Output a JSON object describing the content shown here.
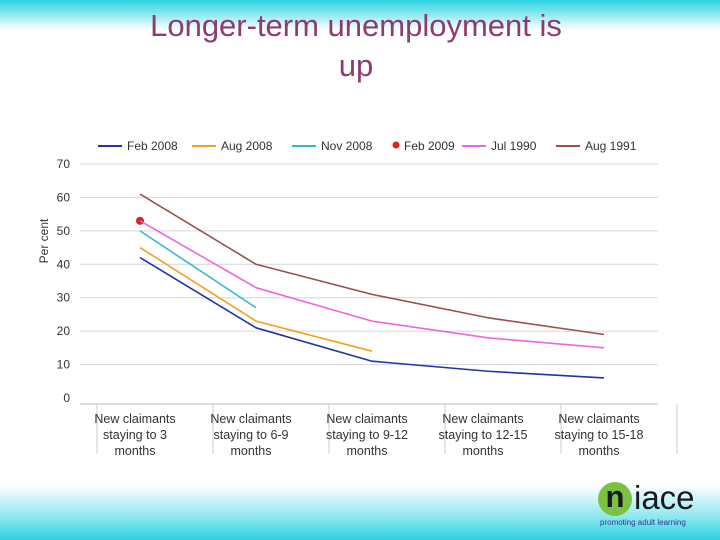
{
  "slide": {
    "title_line1": "Longer-term unemployment is",
    "title_line2": "up"
  },
  "logo": {
    "letter": "n",
    "rest": "iace",
    "tagline": "promoting adult learning"
  },
  "chart_data": {
    "type": "line",
    "ylabel": "Per cent",
    "ylim": [
      0,
      70
    ],
    "yticks": [
      "0",
      "10",
      "20",
      "30",
      "40",
      "50",
      "60",
      "70"
    ],
    "grid": true,
    "legend_position": "top",
    "categories": [
      "New claimants staying to 3 months",
      "New claimants staying to 6-9 months",
      "New claimants staying to 9-12 months",
      "New claimants staying to 12-15 months",
      "New claimants staying to 15-18 months"
    ],
    "category_lines": [
      [
        "New claimants",
        "staying to 3",
        "months"
      ],
      [
        "New claimants",
        "staying to 6-9",
        "months"
      ],
      [
        "New claimants",
        "staying to 9-12",
        "months"
      ],
      [
        "New claimants",
        "staying to 12-15",
        "months"
      ],
      [
        "New claimants",
        "staying to 15-18",
        "months"
      ]
    ],
    "series": [
      {
        "name": "Feb 2008",
        "color": "#2233aa",
        "marker": "line",
        "values": [
          42,
          21,
          11,
          8,
          6
        ]
      },
      {
        "name": "Aug 2008",
        "color": "#f0a020",
        "marker": "line",
        "values": [
          45,
          23,
          14,
          null,
          null
        ]
      },
      {
        "name": "Nov 2008",
        "color": "#35b8d8",
        "marker": "line",
        "values": [
          50,
          27,
          null,
          null,
          null
        ]
      },
      {
        "name": "Feb 2009",
        "color": "#dd2020",
        "marker": "dot",
        "values": [
          53,
          null,
          null,
          null,
          null
        ]
      },
      {
        "name": "Jul 1990",
        "color": "#ee66dd",
        "marker": "line",
        "values": [
          53,
          33,
          23,
          18,
          15
        ]
      },
      {
        "name": "Aug 1991",
        "color": "#9a5050",
        "marker": "line",
        "values": [
          61,
          40,
          31,
          24,
          19
        ]
      }
    ]
  }
}
